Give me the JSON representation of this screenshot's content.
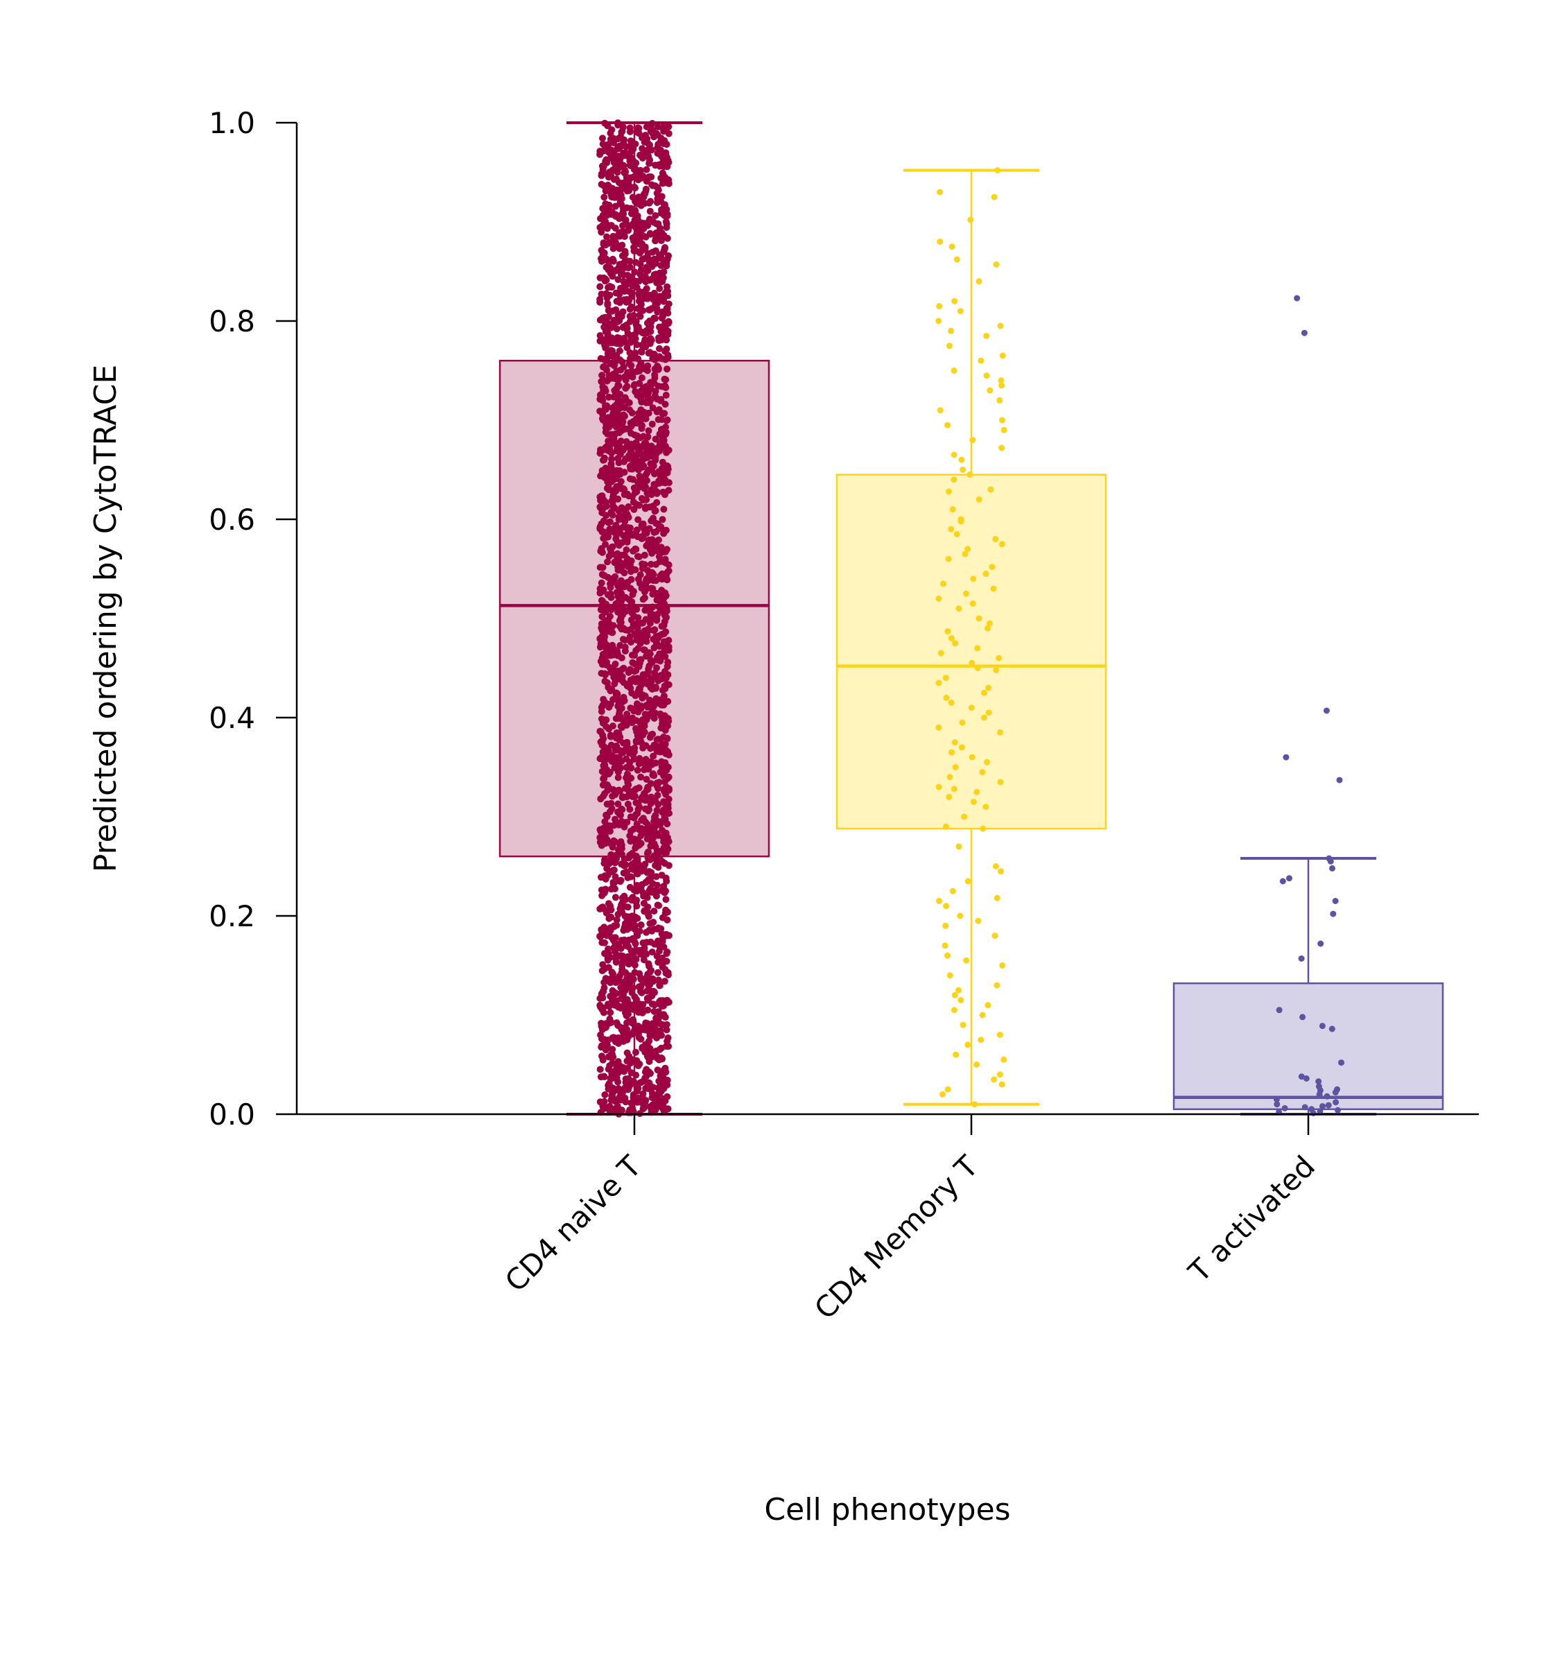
{
  "chart_data": {
    "type": "box",
    "title": "",
    "xlabel": "Cell phenotypes",
    "ylabel": "Predicted ordering by CytoTRACE",
    "ylim": [
      0,
      1
    ],
    "yticks": [
      "0.0",
      "0.2",
      "0.4",
      "0.6",
      "0.8",
      "1.0"
    ],
    "ytick_values": [
      0,
      0.2,
      0.4,
      0.6,
      0.8,
      1.0
    ],
    "categories": [
      "CD4 naive T",
      "CD4 Memory T",
      "T activated"
    ],
    "colors": [
      "#9e0142",
      "#f9d41a",
      "#5e53a0"
    ],
    "fill_colors": [
      "#e5c0ce",
      "#fff5bd",
      "#d6d3e8"
    ],
    "boxes": [
      {
        "name": "CD4 naive T",
        "whisker_low": 0.0,
        "q1": 0.26,
        "median": 0.513,
        "q3": 0.76,
        "whisker_high": 1.0,
        "outliers": []
      },
      {
        "name": "CD4 Memory T",
        "whisker_low": 0.01,
        "q1": 0.288,
        "median": 0.452,
        "q3": 0.645,
        "whisker_high": 0.952,
        "outliers": []
      },
      {
        "name": "T activated",
        "whisker_low": 0.0,
        "q1": 0.005,
        "median": 0.017,
        "q3": 0.132,
        "whisker_high": 0.258,
        "outliers": [
          0.823,
          0.788,
          0.407,
          0.36,
          0.337
        ]
      }
    ],
    "jitter_points": [
      {
        "count": 3000,
        "min": 0.0,
        "max": 1.0
      },
      {
        "values": [
          0.952,
          0.93,
          0.925,
          0.902,
          0.88,
          0.875,
          0.862,
          0.857,
          0.84,
          0.82,
          0.815,
          0.81,
          0.8,
          0.795,
          0.79,
          0.785,
          0.775,
          0.765,
          0.76,
          0.75,
          0.745,
          0.74,
          0.735,
          0.73,
          0.72,
          0.71,
          0.7,
          0.695,
          0.69,
          0.68,
          0.672,
          0.665,
          0.66,
          0.65,
          0.645,
          0.64,
          0.63,
          0.628,
          0.62,
          0.61,
          0.6,
          0.598,
          0.59,
          0.585,
          0.58,
          0.575,
          0.57,
          0.565,
          0.56,
          0.552,
          0.545,
          0.54,
          0.535,
          0.53,
          0.525,
          0.52,
          0.515,
          0.51,
          0.5,
          0.495,
          0.49,
          0.487,
          0.48,
          0.475,
          0.47,
          0.465,
          0.46,
          0.455,
          0.45,
          0.448,
          0.44,
          0.435,
          0.43,
          0.425,
          0.42,
          0.415,
          0.41,
          0.405,
          0.4,
          0.395,
          0.39,
          0.385,
          0.375,
          0.37,
          0.365,
          0.36,
          0.355,
          0.35,
          0.345,
          0.34,
          0.335,
          0.33,
          0.328,
          0.325,
          0.32,
          0.315,
          0.31,
          0.3,
          0.29,
          0.288,
          0.27,
          0.25,
          0.245,
          0.235,
          0.225,
          0.218,
          0.215,
          0.21,
          0.2,
          0.195,
          0.19,
          0.18,
          0.17,
          0.16,
          0.155,
          0.15,
          0.14,
          0.13,
          0.125,
          0.12,
          0.115,
          0.11,
          0.105,
          0.1,
          0.09,
          0.08,
          0.075,
          0.07,
          0.06,
          0.055,
          0.05,
          0.04,
          0.035,
          0.03,
          0.025,
          0.02,
          0.01
        ]
      },
      {
        "values": [
          0.823,
          0.788,
          0.407,
          0.36,
          0.337,
          0.258,
          0.255,
          0.248,
          0.238,
          0.235,
          0.215,
          0.202,
          0.172,
          0.157,
          0.105,
          0.098,
          0.089,
          0.086,
          0.052,
          0.038,
          0.036,
          0.033,
          0.028,
          0.025,
          0.024,
          0.022,
          0.02,
          0.018,
          0.015,
          0.012,
          0.01,
          0.009,
          0.008,
          0.007,
          0.006,
          0.005,
          0.004,
          0.003,
          0.002,
          0.001
        ]
      }
    ],
    "grid": false,
    "legend": "none"
  }
}
